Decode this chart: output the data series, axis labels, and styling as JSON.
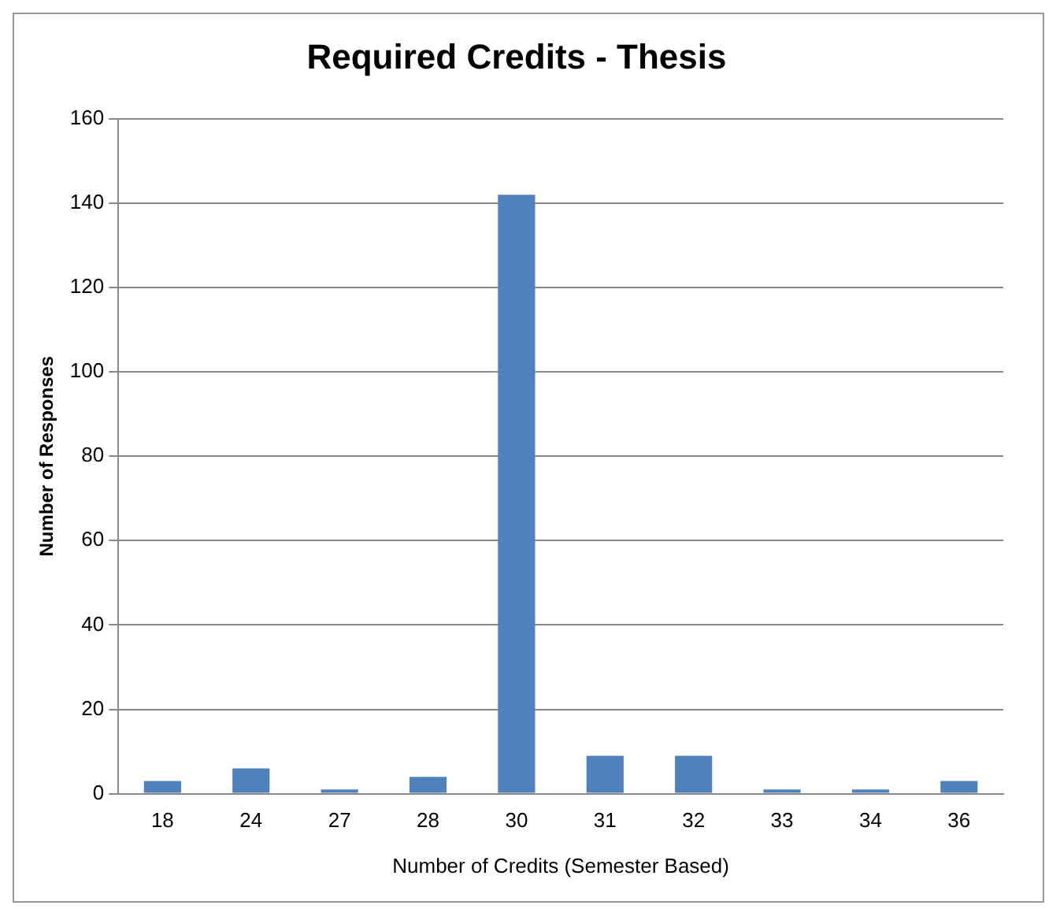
{
  "chart_data": {
    "type": "bar",
    "title": "Required Credits - Thesis",
    "xlabel": "Number of Credits (Semester Based)",
    "ylabel": "Number of Responses",
    "categories": [
      "18",
      "24",
      "27",
      "28",
      "30",
      "31",
      "32",
      "33",
      "34",
      "36"
    ],
    "values": [
      3,
      6,
      1,
      4,
      142,
      9,
      9,
      1,
      1,
      3
    ],
    "color": "#4f81bd",
    "ylim": [
      0,
      160
    ],
    "yticks": [
      0,
      20,
      40,
      60,
      80,
      100,
      120,
      140,
      160
    ],
    "grid": "y",
    "legend": false
  }
}
